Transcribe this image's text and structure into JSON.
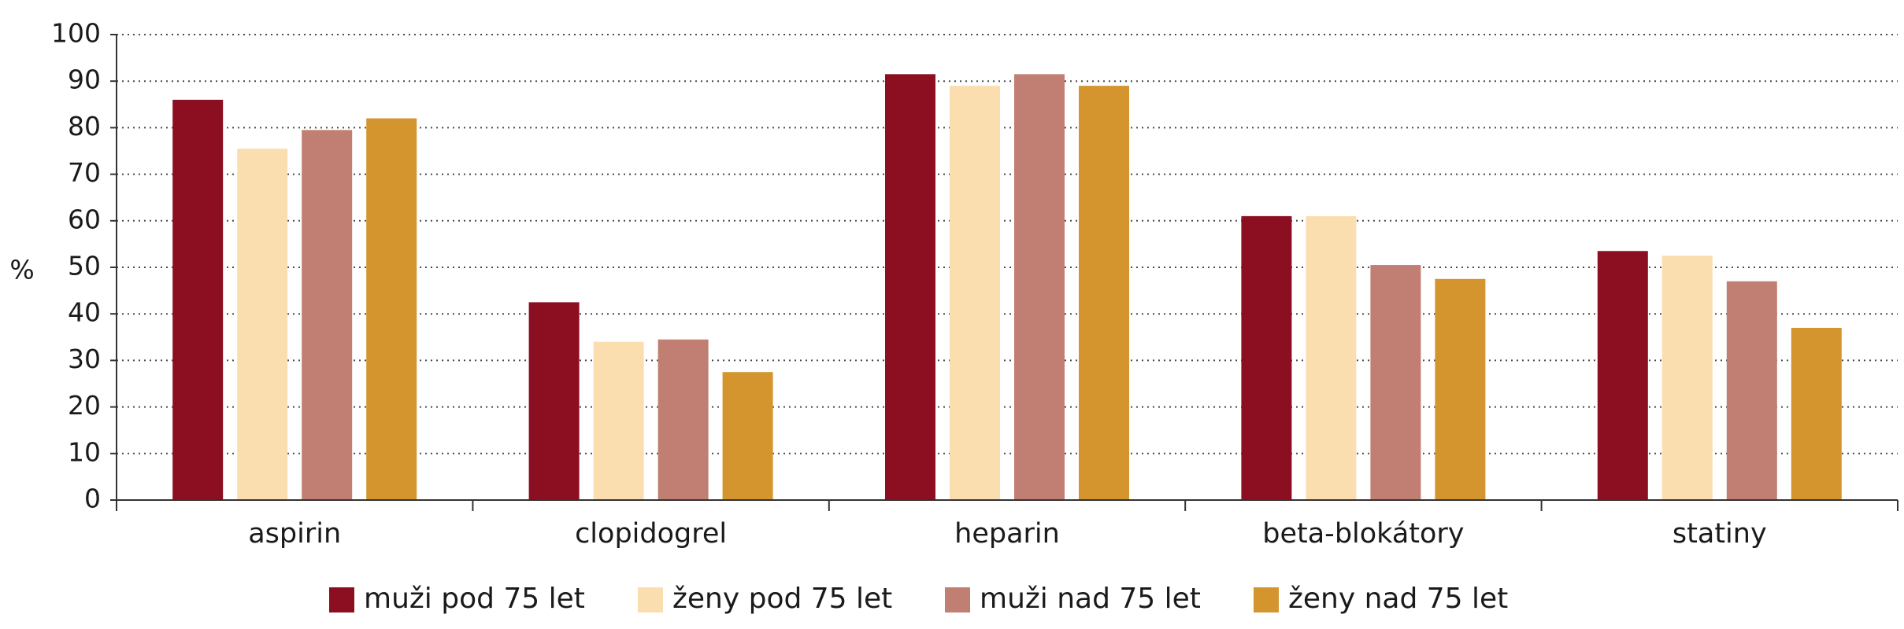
{
  "chart_data": {
    "type": "bar",
    "title": "",
    "xlabel": "",
    "ylabel": "%",
    "ylim": [
      0,
      100
    ],
    "yticks": [
      "0",
      "10",
      "20",
      "30",
      "40",
      "50",
      "60",
      "70",
      "80",
      "90",
      "100"
    ],
    "grid": true,
    "legend_position": "bottom",
    "categories": [
      "aspirin",
      "clopidogrel",
      "heparin",
      "beta-blokátory",
      "statiny"
    ],
    "series": [
      {
        "name": "muži pod 75 let",
        "color": "#8b0e21",
        "values": [
          86,
          42.5,
          91.5,
          61,
          53.5
        ]
      },
      {
        "name": "ženy pod 75 let",
        "color": "#fbdeb0",
        "values": [
          75.5,
          34,
          89,
          61,
          52.5
        ]
      },
      {
        "name": "muži nad 75 let",
        "color": "#c17f73",
        "values": [
          79.5,
          34.5,
          91.5,
          50.5,
          47
        ]
      },
      {
        "name": "ženy nad 75 let",
        "color": "#d4952e",
        "values": [
          82,
          27.5,
          89,
          47.5,
          37
        ]
      }
    ]
  }
}
